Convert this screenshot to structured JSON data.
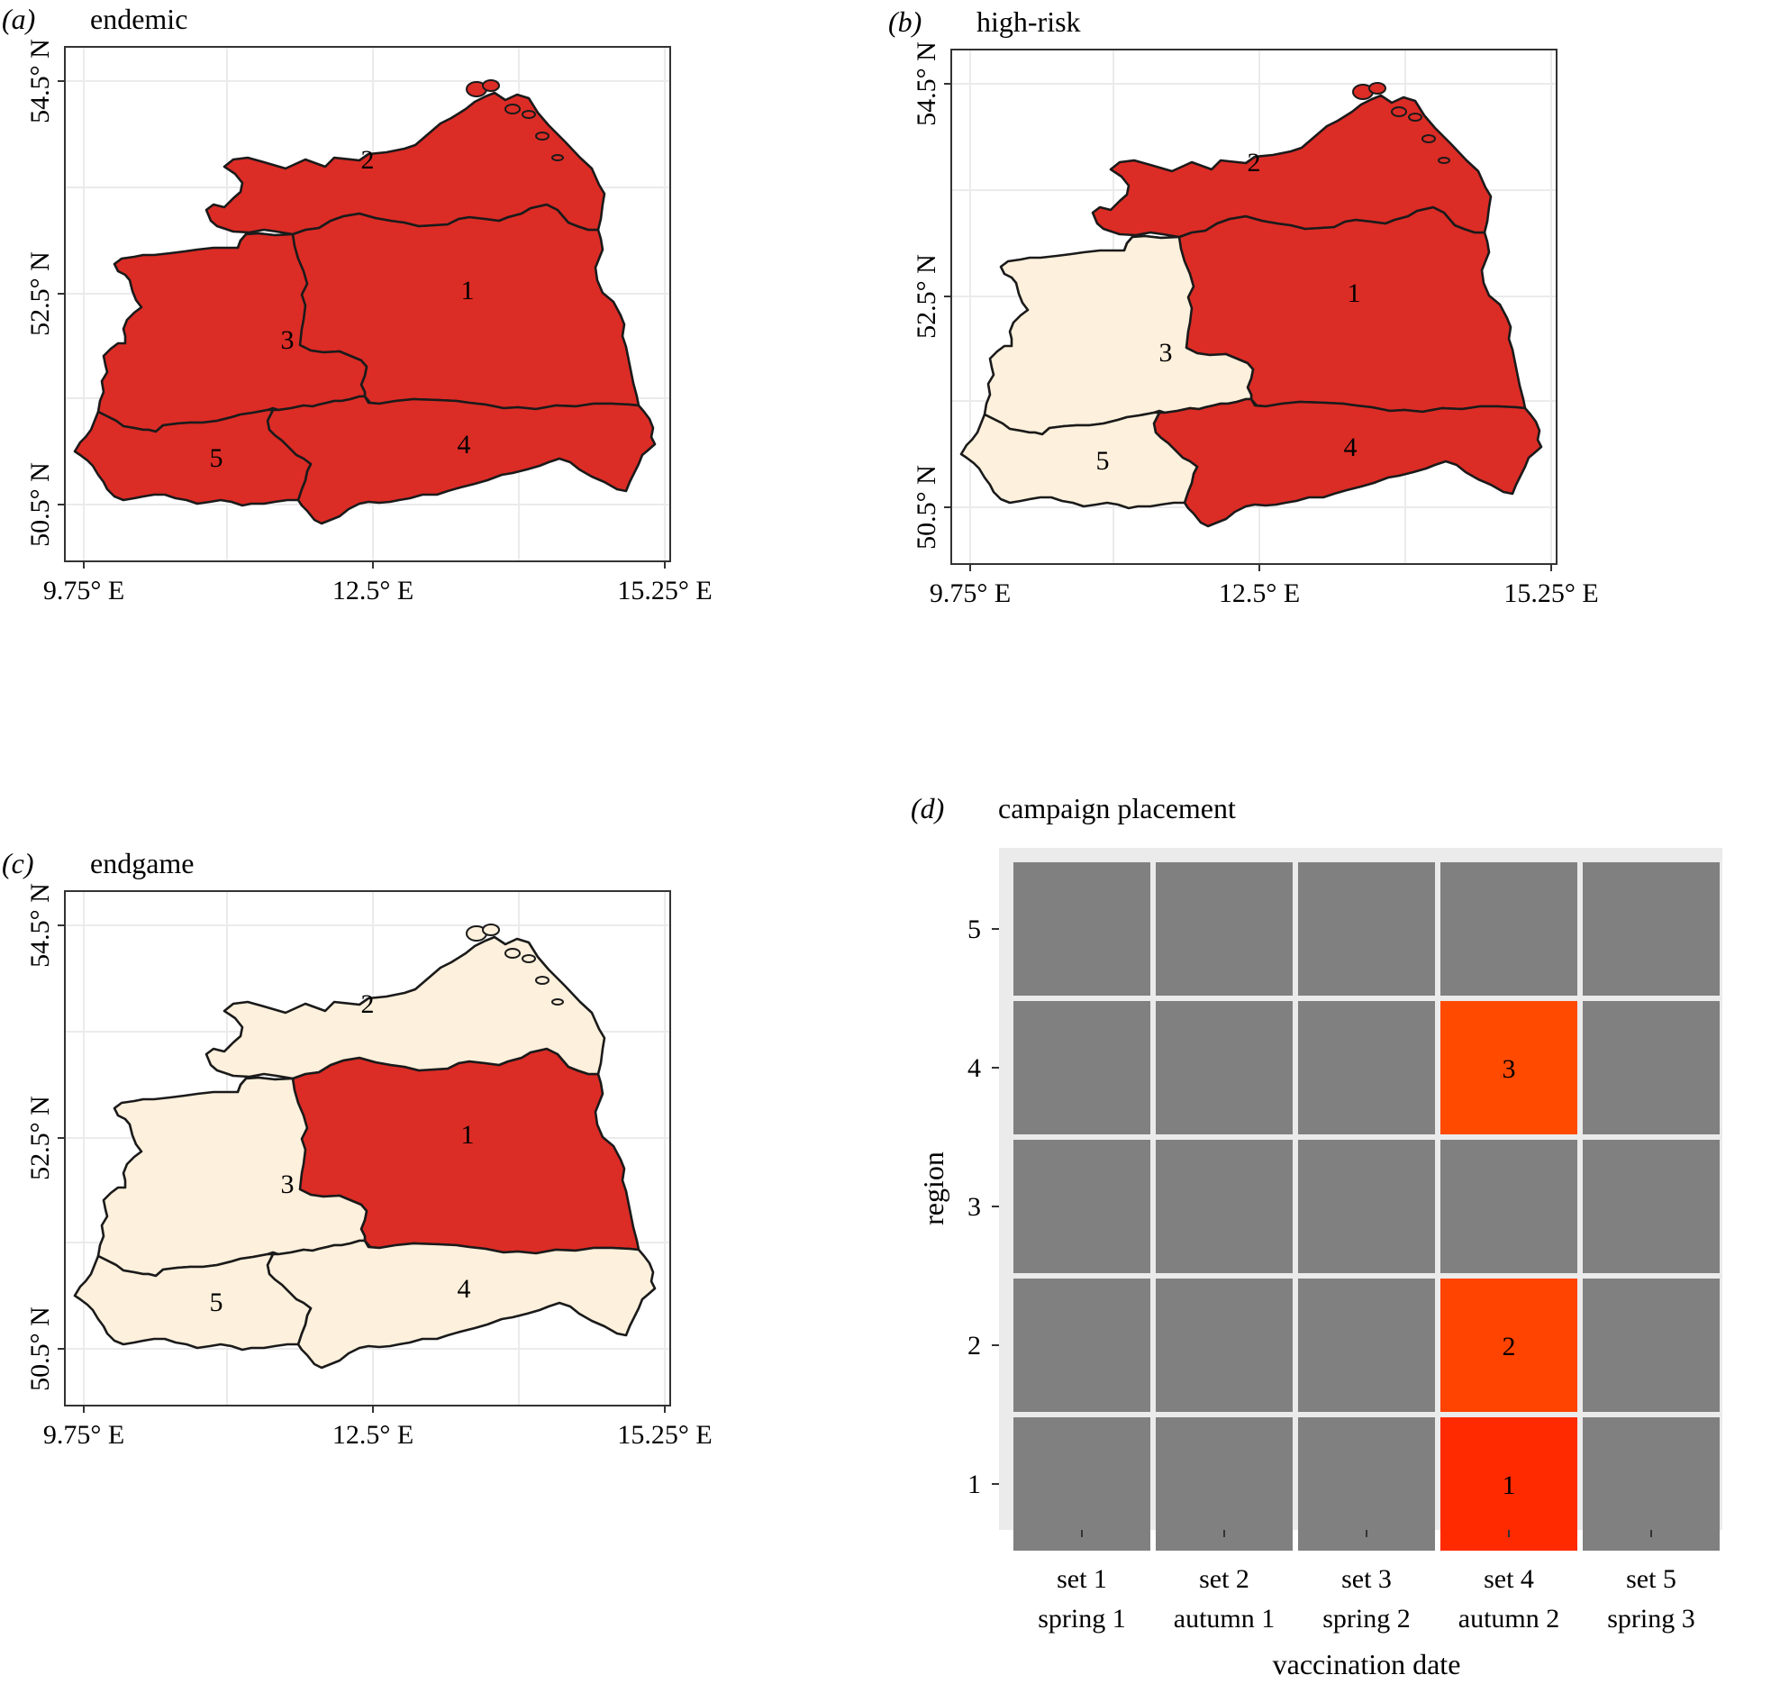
{
  "colors": {
    "infected": "#dc2c26",
    "free": "#fdf0dc",
    "border": "#1a1a1a",
    "grid": "#ebebeb",
    "tile_off": "#808080",
    "tile_campaign_1": "#ff2a00",
    "tile_campaign_2": "#ff4300",
    "tile_campaign_3": "#ff4a00",
    "panel_bg": "#ebebeb"
  },
  "map_axes": {
    "lat_ticks": [
      "54.5° N",
      "52.5° N",
      "50.5° N"
    ],
    "lon_ticks": [
      "9.75° E",
      "12.5° E",
      "15.25° E"
    ]
  },
  "panels": [
    {
      "letter": "(a)",
      "title": "endemic",
      "regions": [
        {
          "id": "1",
          "status": "infected"
        },
        {
          "id": "2",
          "status": "infected"
        },
        {
          "id": "3",
          "status": "infected"
        },
        {
          "id": "4",
          "status": "infected"
        },
        {
          "id": "5",
          "status": "infected"
        }
      ]
    },
    {
      "letter": "(b)",
      "title": "high-risk",
      "regions": [
        {
          "id": "1",
          "status": "infected"
        },
        {
          "id": "2",
          "status": "infected"
        },
        {
          "id": "3",
          "status": "free"
        },
        {
          "id": "4",
          "status": "infected"
        },
        {
          "id": "5",
          "status": "free"
        }
      ]
    },
    {
      "letter": "(c)",
      "title": "endgame",
      "regions": [
        {
          "id": "1",
          "status": "infected"
        },
        {
          "id": "2",
          "status": "free"
        },
        {
          "id": "3",
          "status": "free"
        },
        {
          "id": "4",
          "status": "free"
        },
        {
          "id": "5",
          "status": "free"
        }
      ]
    }
  ],
  "heatmap": {
    "letter": "(d)",
    "title": "campaign placement",
    "ylabel": "region",
    "xlabel": "vaccination date",
    "rows": [
      "5",
      "4",
      "3",
      "2",
      "1"
    ],
    "columns": [
      {
        "line1": "set 1",
        "line2": "spring 1"
      },
      {
        "line1": "set 2",
        "line2": "autumn 1"
      },
      {
        "line1": "set 3",
        "line2": "spring 2"
      },
      {
        "line1": "set 4",
        "line2": "autumn 2"
      },
      {
        "line1": "set 5",
        "line2": "spring 3"
      }
    ],
    "cells": [
      {
        "region": "4",
        "set": "set 4",
        "order": "3"
      },
      {
        "region": "2",
        "set": "set 4",
        "order": "2"
      },
      {
        "region": "1",
        "set": "set 4",
        "order": "1"
      }
    ]
  }
}
